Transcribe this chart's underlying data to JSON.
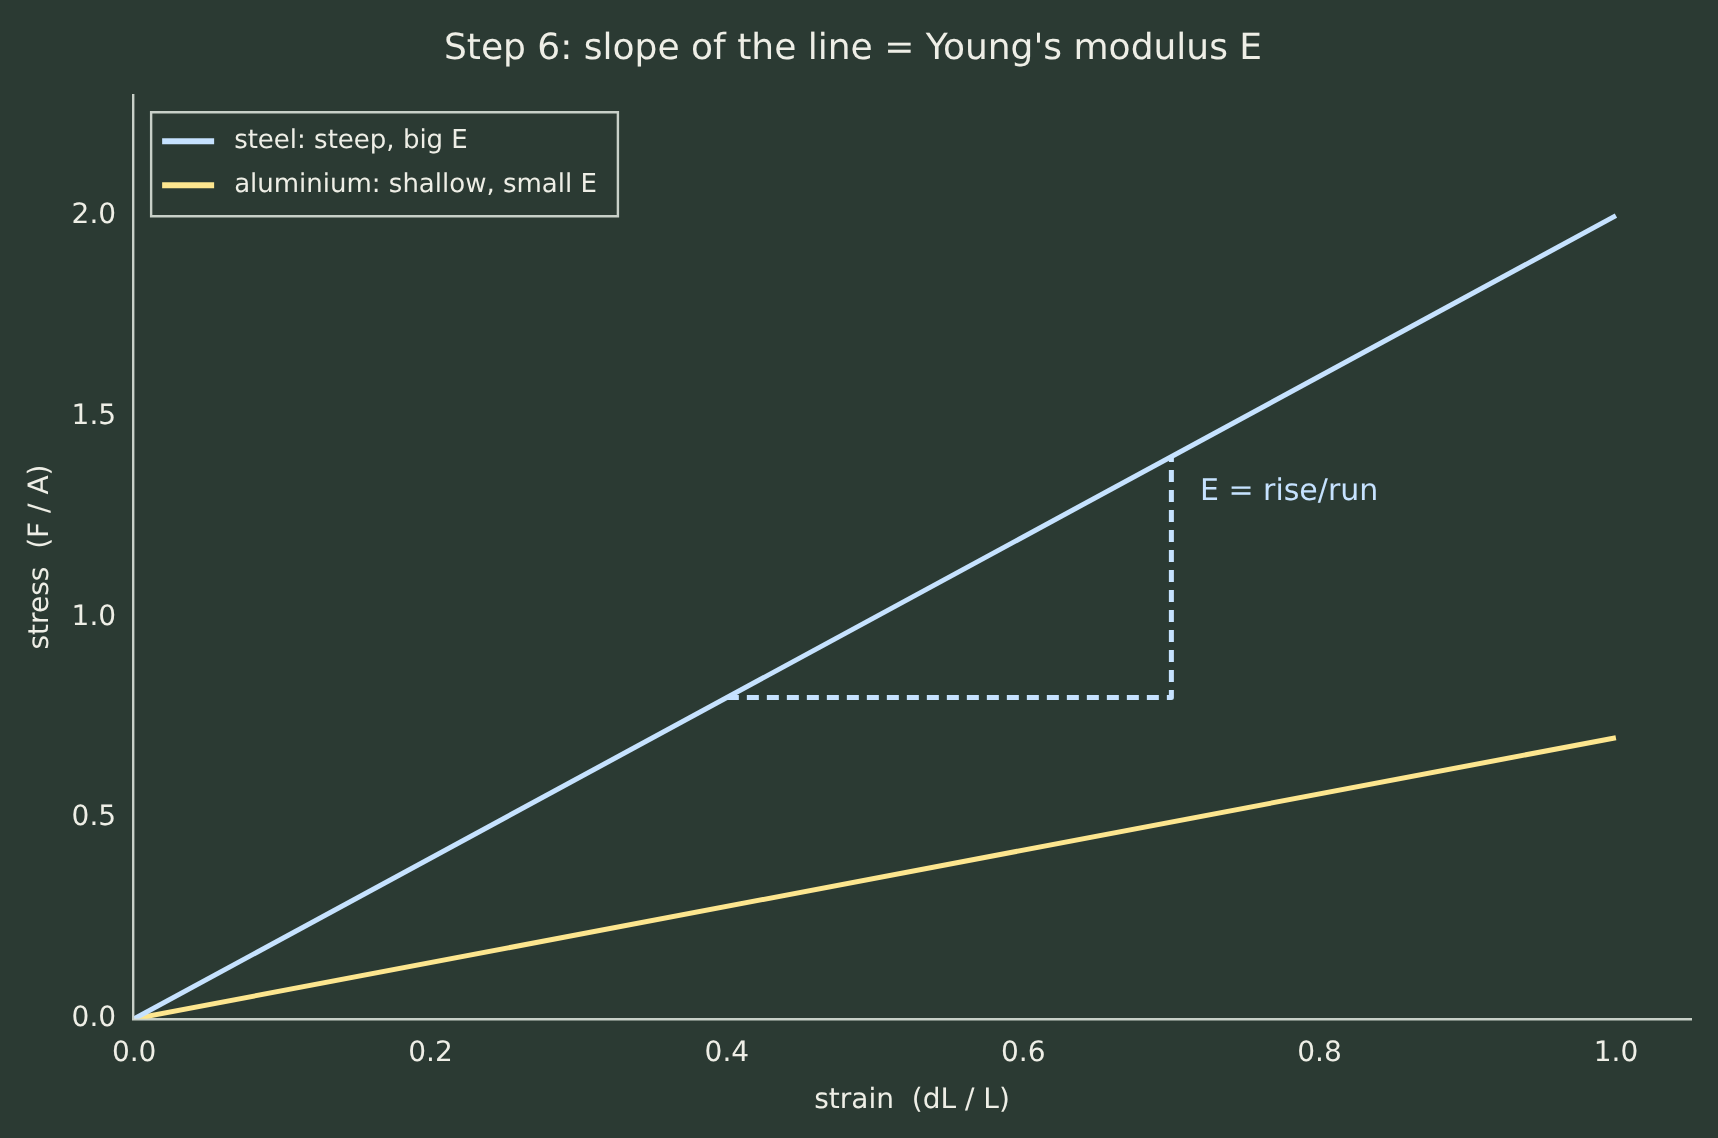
{
  "chart_data": {
    "type": "line",
    "title": "Step 6: slope of the line = Young's modulus E",
    "xlabel": "strain  (dL / L)",
    "ylabel": "stress  (F / A)",
    "series": [
      {
        "name": "steel: steep, big E",
        "color": "#c6e2ff",
        "x": [
          0,
          1
        ],
        "values": [
          0,
          2
        ]
      },
      {
        "name": "aluminium: shallow, small E",
        "color": "#fde68f",
        "x": [
          0,
          1
        ],
        "values": [
          0,
          0.7
        ]
      },
      {
        "color": "#c6e2ff",
        "x": [
          0.4,
          0.7,
          0.7
        ],
        "values": [
          0.8,
          0.8,
          1.4
        ],
        "line_style": "dashed"
      }
    ],
    "annotations": [
      "E = rise/run"
    ],
    "xlim": [
      0,
      1.05
    ],
    "ylim": [
      0,
      2.3
    ],
    "xticks": [
      {
        "value": 0,
        "label": "0.0"
      },
      {
        "value": 0.2,
        "label": "0.2"
      },
      {
        "value": 0.4,
        "label": "0.4"
      },
      {
        "value": 0.6,
        "label": "0.6"
      },
      {
        "value": 0.8,
        "label": "0.8"
      },
      {
        "value": 1,
        "label": "1.0"
      }
    ],
    "yticks": [
      {
        "value": 0,
        "label": "0.0"
      },
      {
        "value": 0.5,
        "label": "0.5"
      },
      {
        "value": 1,
        "label": "1.0"
      },
      {
        "value": 1.5,
        "label": "1.5"
      },
      {
        "value": 2,
        "label": "2.0"
      }
    ],
    "grid": false,
    "legend": "top left",
    "marker": "none",
    "line_style": "solid"
  }
}
